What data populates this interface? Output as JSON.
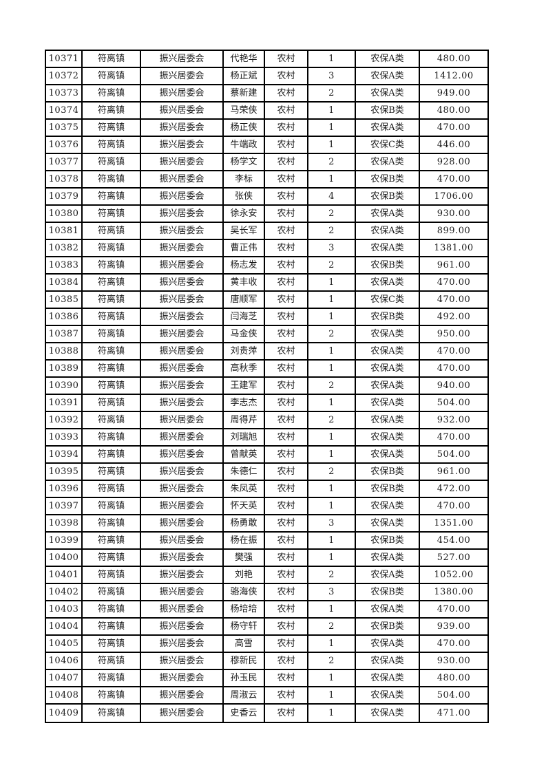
{
  "page": {
    "background_color": "#ffffff",
    "text_color": "#1a1a1a",
    "border_color": "#000000"
  },
  "table": {
    "rows": [
      [
        "10371",
        "符离镇",
        "振兴居委会",
        "代艳华",
        "农村",
        "1",
        "农保A类",
        "480.00"
      ],
      [
        "10372",
        "符离镇",
        "振兴居委会",
        "杨正斌",
        "农村",
        "3",
        "农保A类",
        "1412.00"
      ],
      [
        "10373",
        "符离镇",
        "振兴居委会",
        "蔡新建",
        "农村",
        "2",
        "农保A类",
        "949.00"
      ],
      [
        "10374",
        "符离镇",
        "振兴居委会",
        "马荣侠",
        "农村",
        "1",
        "农保B类",
        "480.00"
      ],
      [
        "10375",
        "符离镇",
        "振兴居委会",
        "杨正侠",
        "农村",
        "1",
        "农保A类",
        "470.00"
      ],
      [
        "10376",
        "符离镇",
        "振兴居委会",
        "牛端政",
        "农村",
        "1",
        "农保C类",
        "446.00"
      ],
      [
        "10377",
        "符离镇",
        "振兴居委会",
        "杨学文",
        "农村",
        "2",
        "农保A类",
        "928.00"
      ],
      [
        "10378",
        "符离镇",
        "振兴居委会",
        "李标",
        "农村",
        "1",
        "农保B类",
        "470.00"
      ],
      [
        "10379",
        "符离镇",
        "振兴居委会",
        "张侠",
        "农村",
        "4",
        "农保B类",
        "1706.00"
      ],
      [
        "10380",
        "符离镇",
        "振兴居委会",
        "徐永安",
        "农村",
        "2",
        "农保A类",
        "930.00"
      ],
      [
        "10381",
        "符离镇",
        "振兴居委会",
        "吴长军",
        "农村",
        "2",
        "农保A类",
        "899.00"
      ],
      [
        "10382",
        "符离镇",
        "振兴居委会",
        "曹正伟",
        "农村",
        "3",
        "农保A类",
        "1381.00"
      ],
      [
        "10383",
        "符离镇",
        "振兴居委会",
        "杨志发",
        "农村",
        "2",
        "农保B类",
        "961.00"
      ],
      [
        "10384",
        "符离镇",
        "振兴居委会",
        "黄丰收",
        "农村",
        "1",
        "农保A类",
        "470.00"
      ],
      [
        "10385",
        "符离镇",
        "振兴居委会",
        "唐顺军",
        "农村",
        "1",
        "农保C类",
        "470.00"
      ],
      [
        "10386",
        "符离镇",
        "振兴居委会",
        "闫海芝",
        "农村",
        "1",
        "农保B类",
        "492.00"
      ],
      [
        "10387",
        "符离镇",
        "振兴居委会",
        "马金侠",
        "农村",
        "2",
        "农保A类",
        "950.00"
      ],
      [
        "10388",
        "符离镇",
        "振兴居委会",
        "刘贵萍",
        "农村",
        "1",
        "农保A类",
        "470.00"
      ],
      [
        "10389",
        "符离镇",
        "振兴居委会",
        "高秋季",
        "农村",
        "1",
        "农保A类",
        "470.00"
      ],
      [
        "10390",
        "符离镇",
        "振兴居委会",
        "王建军",
        "农村",
        "2",
        "农保A类",
        "940.00"
      ],
      [
        "10391",
        "符离镇",
        "振兴居委会",
        "李志杰",
        "农村",
        "1",
        "农保A类",
        "504.00"
      ],
      [
        "10392",
        "符离镇",
        "振兴居委会",
        "周得芹",
        "农村",
        "2",
        "农保A类",
        "932.00"
      ],
      [
        "10393",
        "符离镇",
        "振兴居委会",
        "刘瑞旭",
        "农村",
        "1",
        "农保A类",
        "470.00"
      ],
      [
        "10394",
        "符离镇",
        "振兴居委会",
        "曾献英",
        "农村",
        "1",
        "农保A类",
        "504.00"
      ],
      [
        "10395",
        "符离镇",
        "振兴居委会",
        "朱德仁",
        "农村",
        "2",
        "农保B类",
        "961.00"
      ],
      [
        "10396",
        "符离镇",
        "振兴居委会",
        "朱凤英",
        "农村",
        "1",
        "农保B类",
        "472.00"
      ],
      [
        "10397",
        "符离镇",
        "振兴居委会",
        "怀天英",
        "农村",
        "1",
        "农保A类",
        "470.00"
      ],
      [
        "10398",
        "符离镇",
        "振兴居委会",
        "杨勇敢",
        "农村",
        "3",
        "农保A类",
        "1351.00"
      ],
      [
        "10399",
        "符离镇",
        "振兴居委会",
        "杨在振",
        "农村",
        "1",
        "农保B类",
        "454.00"
      ],
      [
        "10400",
        "符离镇",
        "振兴居委会",
        "樊强",
        "农村",
        "1",
        "农保A类",
        "527.00"
      ],
      [
        "10401",
        "符离镇",
        "振兴居委会",
        "刘艳",
        "农村",
        "2",
        "农保A类",
        "1052.00"
      ],
      [
        "10402",
        "符离镇",
        "振兴居委会",
        "骆海侠",
        "农村",
        "3",
        "农保B类",
        "1380.00"
      ],
      [
        "10403",
        "符离镇",
        "振兴居委会",
        "杨培培",
        "农村",
        "1",
        "农保A类",
        "470.00"
      ],
      [
        "10404",
        "符离镇",
        "振兴居委会",
        "杨守轩",
        "农村",
        "2",
        "农保B类",
        "939.00"
      ],
      [
        "10405",
        "符离镇",
        "振兴居委会",
        "高雪",
        "农村",
        "1",
        "农保A类",
        "470.00"
      ],
      [
        "10406",
        "符离镇",
        "振兴居委会",
        "穆新民",
        "农村",
        "2",
        "农保A类",
        "930.00"
      ],
      [
        "10407",
        "符离镇",
        "振兴居委会",
        "孙玉民",
        "农村",
        "1",
        "农保A类",
        "480.00"
      ],
      [
        "10408",
        "符离镇",
        "振兴居委会",
        "周淑云",
        "农村",
        "1",
        "农保A类",
        "504.00"
      ],
      [
        "10409",
        "符离镇",
        "振兴居委会",
        "史香云",
        "农村",
        "1",
        "农保A类",
        "471.00"
      ]
    ]
  }
}
